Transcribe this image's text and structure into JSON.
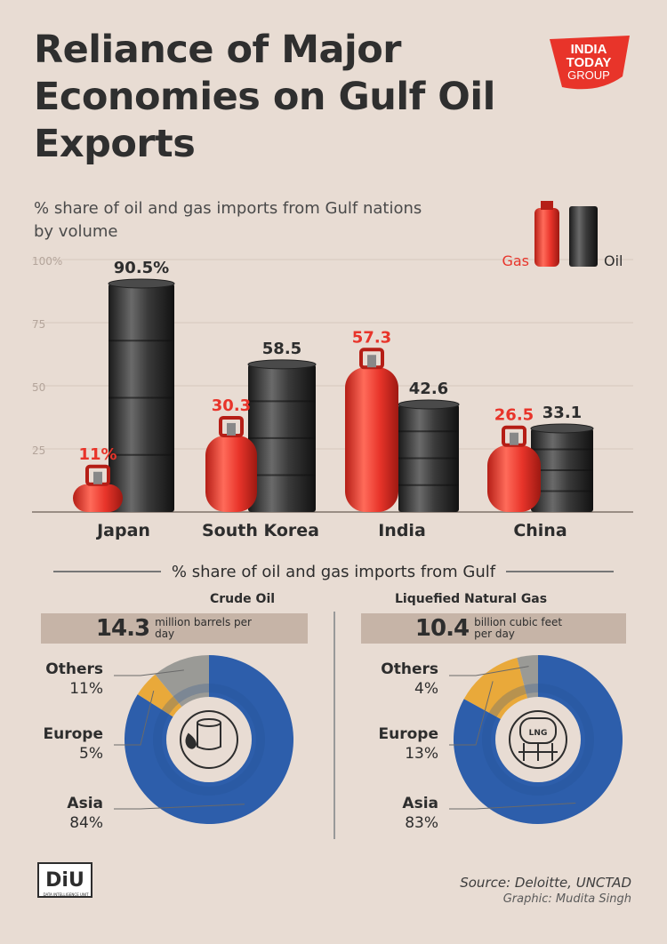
{
  "title": "Reliance of Major Economies on Gulf Oil Exports",
  "brand": {
    "line1": "INDIA",
    "line2": "TODAY",
    "line3": "GROUP"
  },
  "subtitle": "% share of oil and gas imports from Gulf nations by volume",
  "chart_data": [
    {
      "type": "bar",
      "title": "% share of oil and gas imports from Gulf nations by volume",
      "categories": [
        "Japan",
        "South Korea",
        "India",
        "China"
      ],
      "series": [
        {
          "name": "Gas",
          "color": "#e8342a",
          "values": [
            11,
            30.3,
            57.3,
            26.5
          ],
          "labels": [
            "11%",
            "30.3",
            "57.3",
            "26.5"
          ]
        },
        {
          "name": "Oil",
          "color": "#2b2b2b",
          "values": [
            90.5,
            58.5,
            42.6,
            33.1
          ],
          "labels": [
            "90.5%",
            "58.5",
            "42.6",
            "33.1"
          ]
        }
      ],
      "ylim": [
        0,
        100
      ],
      "yticks": [
        "100%",
        "75",
        "50",
        "25"
      ],
      "legend": "top-right"
    },
    {
      "type": "pie",
      "title": "Crude Oil",
      "categories": [
        "Asia",
        "Europe",
        "Others"
      ],
      "values": [
        84,
        5,
        11
      ],
      "labels": [
        "84%",
        "5%",
        "11%"
      ],
      "colors": [
        "#2d5eab",
        "#e9a93a",
        "#9a9a96"
      ],
      "total": {
        "value": "14.3",
        "unit": "million barrels per day"
      }
    },
    {
      "type": "pie",
      "title": "Liquefied Natural Gas",
      "categories": [
        "Asia",
        "Europe",
        "Others"
      ],
      "values": [
        83,
        13,
        4
      ],
      "labels": [
        "83%",
        "13%",
        "4%"
      ],
      "colors": [
        "#2d5eab",
        "#e9a93a",
        "#9a9a96"
      ],
      "total": {
        "value": "10.4",
        "unit": "billion cubic feet per day"
      }
    }
  ],
  "section_heading": "% share of oil and gas imports from Gulf",
  "pie_icons": {
    "oil": "oil-barrel-drop-icon",
    "lng": "lng-tank-icon",
    "lng_text": "LNG"
  },
  "logo": {
    "text": "DiU",
    "caption": "DATA INTELLIGENCE UNIT"
  },
  "source": "Source: Deloitte, UNCTAD",
  "credit": "Graphic: Mudita Singh"
}
